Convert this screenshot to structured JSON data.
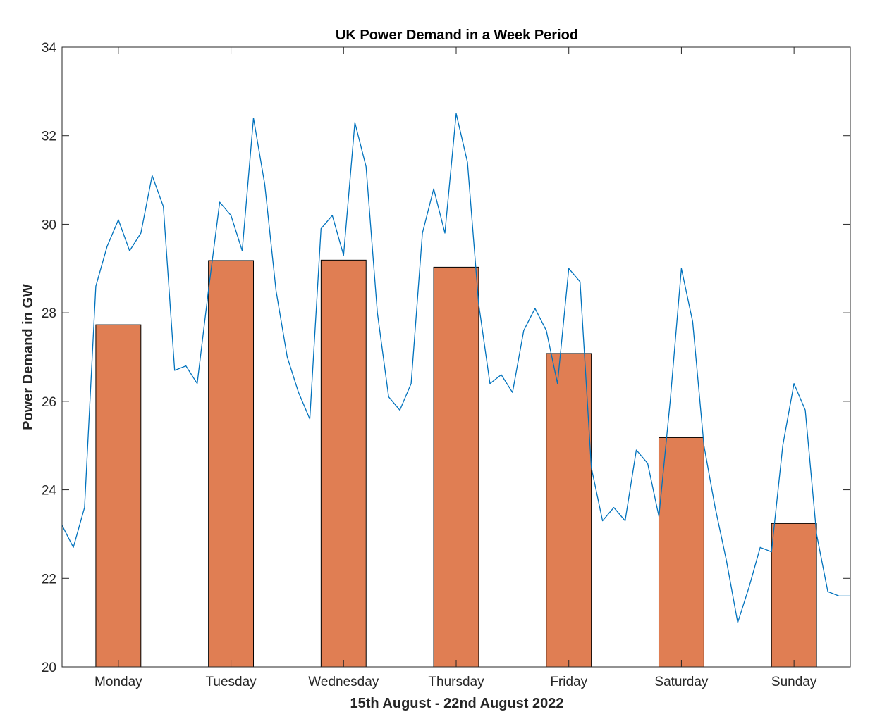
{
  "chart_data": {
    "type": "bar",
    "title": "UK Power Demand in a Week Period",
    "xlabel": "15th August - 22nd August 2022",
    "ylabel": "Power Demand in GW",
    "categories": [
      "Monday",
      "Tuesday",
      "Wednesday",
      "Thursday",
      "Friday",
      "Saturday",
      "Sunday"
    ],
    "values": [
      27.73,
      29.18,
      29.19,
      29.03,
      27.08,
      25.18,
      23.24
    ],
    "ylim": [
      20,
      34
    ],
    "yticks": [
      "20",
      "22",
      "24",
      "26",
      "28",
      "30",
      "32",
      "34"
    ],
    "grid": false,
    "bar_color": "#e07e53",
    "line_color": "#0072bd",
    "line_series": {
      "x": [
        0,
        0.1,
        0.2,
        0.3,
        0.4,
        0.5,
        0.6,
        0.7,
        0.8,
        0.9,
        1.0,
        1.1,
        1.2,
        1.3,
        1.4,
        1.5,
        1.6,
        1.7,
        1.8,
        1.9,
        2.0,
        2.1,
        2.2,
        2.3,
        2.4,
        2.5,
        2.6,
        2.7,
        2.8,
        2.9,
        3.0,
        3.1,
        3.2,
        3.3,
        3.4,
        3.5,
        3.6,
        3.7,
        3.8,
        3.9,
        4.0,
        4.1,
        4.2,
        4.3,
        4.4,
        4.5,
        4.6,
        4.7,
        4.8,
        4.9,
        5.0,
        5.1,
        5.2,
        5.3,
        5.4,
        5.5,
        5.6,
        5.7,
        5.8,
        5.9,
        6.0,
        6.1,
        6.2,
        6.3,
        6.4,
        6.5,
        6.6,
        6.7,
        6.8,
        6.9,
        7.0
      ],
      "y": [
        23.2,
        22.7,
        23.6,
        28.6,
        29.5,
        30.1,
        29.4,
        29.8,
        31.1,
        30.4,
        26.7,
        26.8,
        26.4,
        28.5,
        30.5,
        30.2,
        29.4,
        32.4,
        30.9,
        28.5,
        27.0,
        26.2,
        25.6,
        29.9,
        30.2,
        29.3,
        32.3,
        31.3,
        28.0,
        26.1,
        25.8,
        26.4,
        29.8,
        30.8,
        29.8,
        32.5,
        31.4,
        28.2,
        26.4,
        26.6,
        26.2,
        27.6,
        28.1,
        27.6,
        26.4,
        29.0,
        28.7,
        24.5,
        23.3,
        23.6,
        23.3,
        24.9,
        24.6,
        23.4,
        26.0,
        29.0,
        27.8,
        25.0,
        23.6,
        22.4,
        21.0,
        21.8,
        22.7,
        22.6,
        25.0,
        26.4,
        25.8,
        23.0,
        21.7,
        21.6,
        21.6
      ]
    }
  }
}
